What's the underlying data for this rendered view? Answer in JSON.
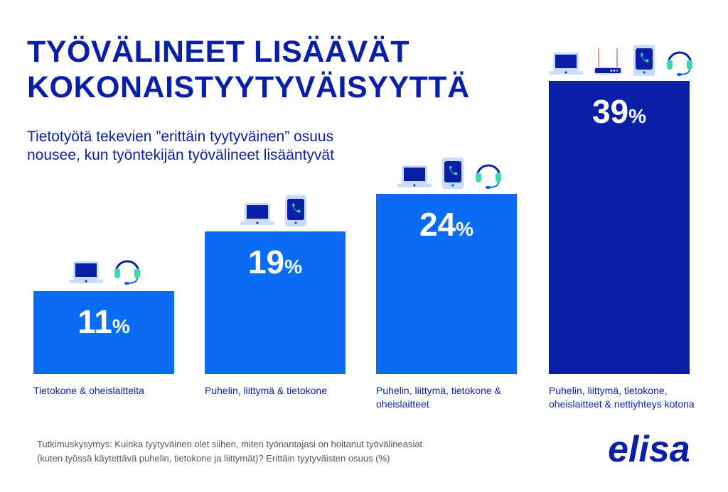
{
  "title_lines": [
    "TYÖVÄLINEET LISÄÄVÄT",
    "KOKONAISTYYTYVÄISYYTTÄ"
  ],
  "subtitle": "Tietotyötä tekevien ”erittäin tyytyväinen” osuus nousee, kun työntekijän työvälineet lisääntyvät",
  "footnote_lines": [
    "Tutkimuskysymys: Kuinka tyytyväinen olet siihen, miten työnantajasi on hoitanut työvälineasiat",
    "(kuten työssä käytettävä puhelin, tietokone ja liittymät)?  Erittäin tyytyväisten osuus (%)"
  ],
  "logo": "elisa",
  "colors": {
    "bar": "#0a6cf5",
    "bar_highlight": "#0a1fa8",
    "text": "#0a1fa8"
  },
  "chart_data": {
    "type": "bar",
    "unit": "%",
    "categories": [
      "Tietokone & oheislaitteita",
      "Puhelin, liittymä & tietokone",
      "Puhelin, liittymä, tietokone & oheislaitteet",
      "Puhelin, liittymä, tietokone, oheislaitteet & nettiyhteys kotona"
    ],
    "values": [
      11,
      19,
      24,
      39
    ],
    "icons": [
      [
        "laptop-icon",
        "headset-icon"
      ],
      [
        "laptop-icon",
        "phone-icon"
      ],
      [
        "laptop-icon",
        "phone-icon",
        "headset-icon"
      ],
      [
        "laptop-icon",
        "router-icon",
        "phone-icon",
        "headset-icon"
      ]
    ],
    "ylim": [
      0,
      40
    ]
  }
}
